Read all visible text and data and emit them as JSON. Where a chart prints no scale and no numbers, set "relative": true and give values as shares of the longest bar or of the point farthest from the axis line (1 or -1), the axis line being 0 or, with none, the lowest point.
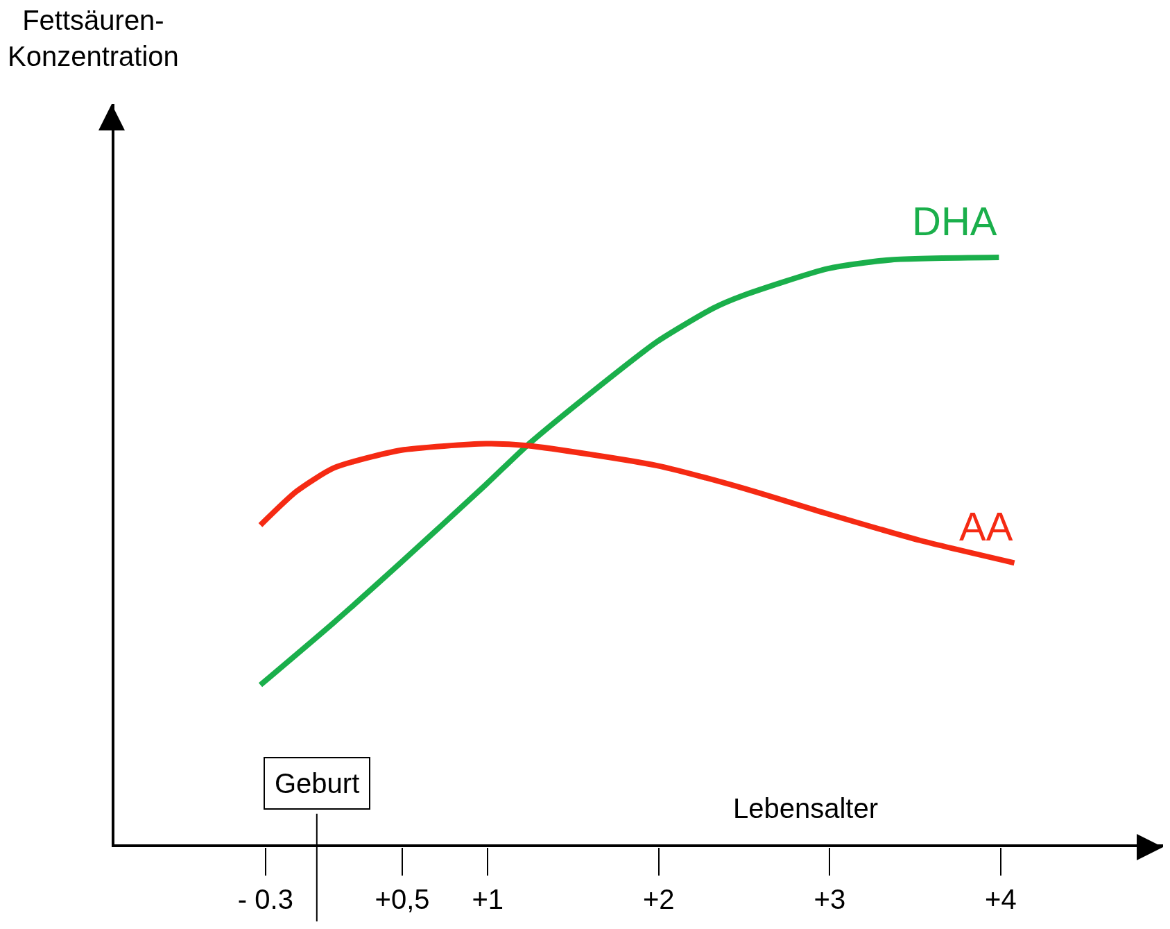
{
  "chart_data": {
    "type": "line",
    "relative": true,
    "xlabel": "Lebensalter",
    "annotations": [
      "Fettsäuren-\nKonzentration"
    ],
    "xlim": [
      -1.2,
      4.95
    ],
    "xticks": [
      {
        "value": -0.3,
        "label": "- 0.3"
      },
      {
        "value": 0.5,
        "label": "+0,5"
      },
      {
        "value": 1,
        "label": "+1"
      },
      {
        "value": 2,
        "label": "+2"
      },
      {
        "value": 3,
        "label": "+3"
      },
      {
        "value": 4,
        "label": "+4"
      }
    ],
    "grid": false,
    "legend": false,
    "marker": "none",
    "line_style": "solid",
    "ref_lines": [
      {
        "axis": "x",
        "value": 0,
        "label": "Geburt",
        "color": "#000000"
      }
    ],
    "series": [
      {
        "name": "DHA",
        "color": "#1aaf4b",
        "x": [
          -0.33,
          0.1,
          0.49,
          0.99,
          1.23,
          1.62,
          1.99,
          2.32,
          2.49,
          2.99,
          3.36,
          3.99
        ],
        "values": [
          0.275,
          0.381,
          0.482,
          0.615,
          0.681,
          0.774,
          0.857,
          0.914,
          0.935,
          0.981,
          0.996,
          1
        ]
      },
      {
        "name": "AA",
        "color": "#f52a13",
        "x": [
          -0.33,
          -0.12,
          0.1,
          0.49,
          0.99,
          1.23,
          1.99,
          2.49,
          2.99,
          3.53,
          4.08
        ],
        "values": [
          0.546,
          0.603,
          0.643,
          0.673,
          0.684,
          0.681,
          0.647,
          0.609,
          0.565,
          0.52,
          0.482
        ]
      }
    ]
  }
}
